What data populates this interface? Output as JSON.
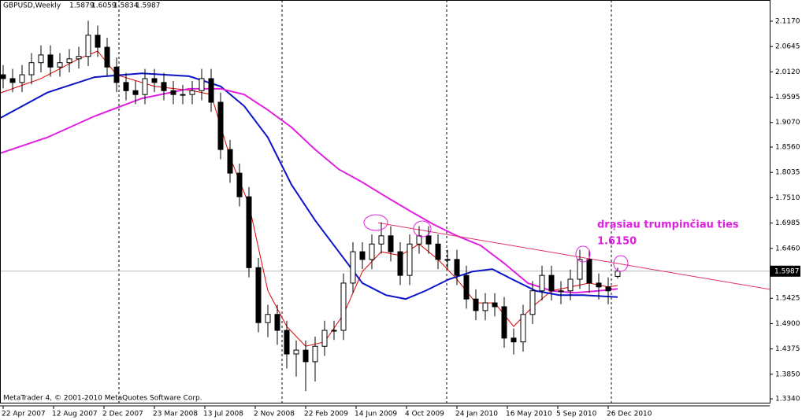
{
  "chart_data": {
    "type": "candlestick",
    "title": "GBPUSD,Weekly",
    "annotation": "drąsiau trumpinčiau ties",
    "annotation_level": "1.6150",
    "footer": "MetaTrader 4, © 2001-2010 MetaQuotes Software Corp.",
    "x": [
      0,
      3,
      6,
      9,
      12,
      15,
      18,
      21,
      24,
      27,
      30,
      33,
      36,
      39,
      42,
      45,
      48,
      51,
      54,
      57,
      60,
      63,
      66,
      69,
      72,
      75,
      78,
      81,
      84,
      87,
      90,
      93,
      96,
      99,
      102,
      105,
      108,
      111,
      114,
      117,
      120,
      123,
      126,
      129,
      132,
      135,
      138,
      141,
      144,
      147,
      150,
      153,
      156,
      159,
      162,
      165,
      168,
      171,
      174,
      177,
      180,
      183,
      186,
      189,
      192,
      195
    ],
    "open": [
      2.006,
      1.998,
      1.99,
      2.006,
      2.031,
      2.047,
      2.022,
      2.031,
      2.039,
      2.044,
      2.088,
      2.063,
      2.022,
      1.99,
      1.973,
      1.965,
      1.998,
      1.99,
      1.973,
      1.965,
      1.965,
      1.973,
      1.998,
      1.949,
      1.851,
      1.802,
      1.753,
      1.606,
      1.492,
      1.509,
      1.476,
      1.427,
      1.435,
      1.411,
      1.443,
      1.476,
      1.476,
      1.574,
      1.639,
      1.623,
      1.655,
      1.672,
      1.639,
      1.59,
      1.655,
      1.672,
      1.655,
      1.623,
      1.623,
      1.59,
      1.541,
      1.517,
      1.533,
      1.525,
      1.46,
      1.452,
      1.509,
      1.558,
      1.59,
      1.558,
      1.558,
      1.582,
      1.623,
      1.574,
      1.566,
      1.5879
    ],
    "high": [
      2.026,
      2.018,
      2.026,
      2.051,
      2.067,
      2.067,
      2.051,
      2.059,
      2.064,
      2.118,
      2.108,
      2.083,
      2.042,
      2.01,
      1.993,
      2.018,
      2.018,
      2.01,
      1.993,
      1.985,
      1.993,
      2.018,
      2.018,
      1.969,
      1.871,
      1.822,
      1.773,
      1.626,
      1.529,
      1.529,
      1.496,
      1.455,
      1.455,
      1.463,
      1.496,
      1.496,
      1.594,
      1.659,
      1.659,
      1.675,
      1.7,
      1.692,
      1.659,
      1.675,
      1.692,
      1.692,
      1.675,
      1.643,
      1.643,
      1.61,
      1.561,
      1.553,
      1.553,
      1.545,
      1.48,
      1.529,
      1.578,
      1.61,
      1.61,
      1.578,
      1.602,
      1.643,
      1.643,
      1.594,
      1.586,
      1.6059
    ],
    "low": [
      1.978,
      1.97,
      1.97,
      1.986,
      2.011,
      2.002,
      2.002,
      2.011,
      2.019,
      2.024,
      2.043,
      2.002,
      1.97,
      1.953,
      1.945,
      1.945,
      1.97,
      1.953,
      1.945,
      1.945,
      1.945,
      1.953,
      1.929,
      1.831,
      1.782,
      1.733,
      1.586,
      1.472,
      1.462,
      1.446,
      1.397,
      1.38,
      1.35,
      1.37,
      1.423,
      1.456,
      1.456,
      1.554,
      1.603,
      1.603,
      1.635,
      1.619,
      1.57,
      1.57,
      1.635,
      1.635,
      1.603,
      1.603,
      1.57,
      1.521,
      1.497,
      1.497,
      1.505,
      1.44,
      1.426,
      1.432,
      1.489,
      1.538,
      1.538,
      1.53,
      1.538,
      1.562,
      1.554,
      1.54,
      1.53,
      1.5834
    ],
    "close": [
      1.998,
      1.99,
      2.006,
      2.031,
      2.047,
      2.022,
      2.031,
      2.039,
      2.044,
      2.088,
      2.063,
      2.022,
      1.99,
      1.973,
      1.965,
      1.998,
      1.99,
      1.973,
      1.965,
      1.965,
      1.973,
      1.998,
      1.949,
      1.851,
      1.802,
      1.753,
      1.606,
      1.492,
      1.509,
      1.476,
      1.427,
      1.435,
      1.411,
      1.443,
      1.476,
      1.476,
      1.574,
      1.639,
      1.623,
      1.655,
      1.672,
      1.639,
      1.59,
      1.655,
      1.672,
      1.655,
      1.623,
      1.623,
      1.59,
      1.541,
      1.517,
      1.533,
      1.525,
      1.46,
      1.452,
      1.509,
      1.558,
      1.59,
      1.558,
      1.558,
      1.582,
      1.623,
      1.574,
      1.566,
      1.558,
      1.5987
    ],
    "series": [
      {
        "color": "#dd0000",
        "x": [
          -1,
          12,
          24,
          30,
          36,
          48,
          60,
          66,
          72,
          78,
          84,
          90,
          96,
          102,
          108,
          114,
          120,
          126,
          132,
          138,
          144,
          150,
          156,
          162,
          168,
          174,
          180,
          186,
          192,
          195
        ],
        "values": [
          1.968,
          1.998,
          2.039,
          2.055,
          2.006,
          1.982,
          1.973,
          1.965,
          1.835,
          1.737,
          1.558,
          1.484,
          1.443,
          1.452,
          1.509,
          1.598,
          1.639,
          1.631,
          1.655,
          1.623,
          1.582,
          1.533,
          1.533,
          1.484,
          1.525,
          1.558,
          1.566,
          1.574,
          1.566,
          1.569
        ]
      },
      {
        "color": "#0a14c8",
        "x": [
          -1,
          14,
          29,
          44,
          59,
          69,
          76.5,
          84,
          91.5,
          99,
          106.5,
          114,
          121.5,
          127.75,
          134,
          141.5,
          149,
          155.25,
          161.5,
          169,
          176.5,
          184,
          195
        ],
        "values": [
          1.916,
          1.969,
          2.001,
          2.009,
          2.003,
          1.982,
          1.941,
          1.876,
          1.778,
          1.704,
          1.639,
          1.574,
          1.549,
          1.541,
          1.558,
          1.582,
          1.598,
          1.603,
          1.582,
          1.558,
          1.549,
          1.549,
          1.545
        ]
      },
      {
        "color": "#e020e0",
        "x": [
          -1,
          14,
          29,
          44,
          59,
          69,
          76.5,
          84,
          91.5,
          99,
          106.5,
          114,
          121.5,
          129,
          136.5,
          144,
          151.5,
          159,
          166.5,
          174,
          181.5,
          189,
          195
        ],
        "values": [
          1.843,
          1.876,
          1.92,
          1.957,
          1.977,
          1.977,
          1.965,
          1.933,
          1.897,
          1.851,
          1.81,
          1.783,
          1.753,
          1.724,
          1.696,
          1.672,
          1.652,
          1.615,
          1.574,
          1.558,
          1.554,
          1.558,
          1.562
        ]
      }
    ],
    "trendline": {
      "color": "#e0306a",
      "x": [
        119,
        243.25
      ],
      "values": [
        1.699,
        1.561
      ]
    },
    "current_price": 1.5987,
    "xlim": [
      -1,
      243.25
    ],
    "ylim": [
      1.326,
      2.161
    ],
    "xticks": [
      {
        "value": 0,
        "label": "22 Apr 2007"
      },
      {
        "value": 16,
        "label": "12 Aug 2007"
      },
      {
        "value": 32,
        "label": "2 Dec 2007"
      },
      {
        "value": 48,
        "label": "23 Mar 2008"
      },
      {
        "value": 64,
        "label": "13 Jul 2008"
      },
      {
        "value": 80,
        "label": "2 Nov 2008"
      },
      {
        "value": 96,
        "label": "22 Feb 2009"
      },
      {
        "value": 112,
        "label": "14 Jun 2009"
      },
      {
        "value": 128,
        "label": "4 Oct 2009"
      },
      {
        "value": 144,
        "label": "24 Jan 2010"
      },
      {
        "value": 160,
        "label": "16 May 2010"
      },
      {
        "value": 176,
        "label": "5 Sep 2010"
      },
      {
        "value": 192,
        "label": "26 Dec 2010"
      }
    ],
    "yticks": [
      {
        "value": 2.117,
        "label": "2.1170"
      },
      {
        "value": 2.0645,
        "label": "2.0645"
      },
      {
        "value": 2.012,
        "label": "2.0120"
      },
      {
        "value": 1.9595,
        "label": "1.9595"
      },
      {
        "value": 1.907,
        "label": "1.9070"
      },
      {
        "value": 1.856,
        "label": "1.8560"
      },
      {
        "value": 1.8035,
        "label": "1.8035"
      },
      {
        "value": 1.751,
        "label": "1.7510"
      },
      {
        "value": 1.6985,
        "label": "1.6985"
      },
      {
        "value": 1.646,
        "label": "1.6460"
      },
      {
        "value": 1.5425,
        "label": "1.5425"
      },
      {
        "value": 1.49,
        "label": "1.4900"
      },
      {
        "value": 1.4375,
        "label": "1.4375"
      },
      {
        "value": 1.385,
        "label": "1.3850"
      },
      {
        "value": 1.334,
        "label": "1.3340"
      }
    ]
  }
}
